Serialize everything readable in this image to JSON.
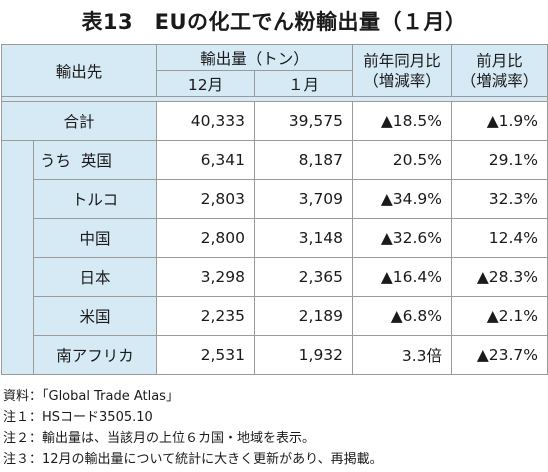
{
  "title": "表13　EUの化工でん粉輸出量（１月）",
  "headers": {
    "dest": "輸出先",
    "volume": "輸出量（トン）",
    "dec": "12月",
    "jan": "１月",
    "yoy": "前年同月比\n（増減率）",
    "yoy_l1": "前年同月比",
    "yoy_l2": "（増減率）",
    "mom_l1": "前月比",
    "mom_l2": "（増減率）"
  },
  "total": {
    "name": "合計",
    "dec": "40,333",
    "jan": "39,575",
    "yoy": "▲18.5%",
    "mom": "▲1.9%"
  },
  "uchi": "うち",
  "rows": [
    {
      "name": "英国",
      "dec": "6,341",
      "jan": "8,187",
      "yoy": "20.5%",
      "mom": "29.1%"
    },
    {
      "name": "トルコ",
      "dec": "2,803",
      "jan": "3,709",
      "yoy": "▲34.9%",
      "mom": "32.3%"
    },
    {
      "name": "中国",
      "dec": "2,800",
      "jan": "3,148",
      "yoy": "▲32.6%",
      "mom": "12.4%"
    },
    {
      "name": "日本",
      "dec": "3,298",
      "jan": "2,365",
      "yoy": "▲16.4%",
      "mom": "▲28.3%"
    },
    {
      "name": "米国",
      "dec": "2,235",
      "jan": "2,189",
      "yoy": "▲6.8%",
      "mom": "▲2.1%"
    },
    {
      "name": "南アフリカ",
      "dec": "2,531",
      "jan": "1,932",
      "yoy": "3.3倍",
      "mom": "▲23.7%"
    }
  ],
  "notes": [
    "資料：「Global Trade Atlas」",
    "注１：HSコード3505.10",
    "注２：輸出量は、当該月の上位６カ国・地域を表示。",
    "注３：12月の輸出量について統計に大きく更新があり、再掲載。"
  ]
}
